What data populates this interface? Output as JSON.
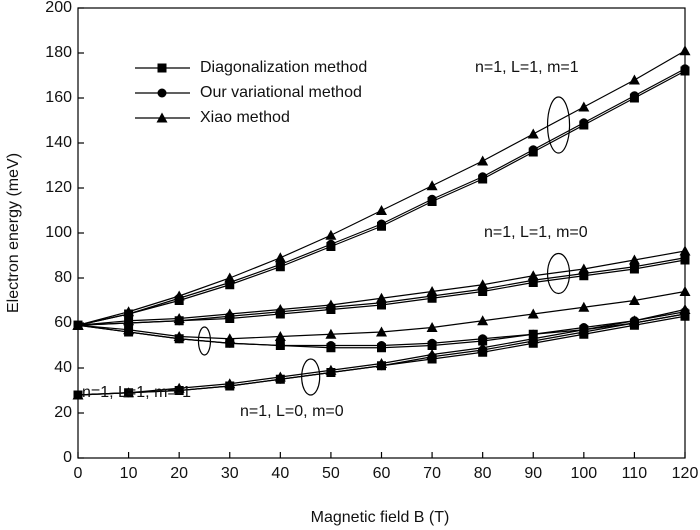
{
  "chart_data": {
    "type": "line",
    "xlabel": "Magnetic field B (T)",
    "ylabel": "Electron energy (meV)",
    "x": [
      0,
      10,
      20,
      30,
      40,
      50,
      60,
      70,
      80,
      90,
      100,
      110,
      120
    ],
    "xlim": [
      0,
      120
    ],
    "xticks": [
      0,
      10,
      20,
      30,
      40,
      50,
      60,
      70,
      80,
      90,
      100,
      110,
      120
    ],
    "ylim": [
      0,
      200
    ],
    "yticks": [
      0,
      20,
      40,
      60,
      80,
      100,
      120,
      140,
      160,
      180,
      200
    ],
    "legend": "upper left",
    "states": [
      "n=1, L=1, m=1",
      "n=1, L=1, m=0",
      "n=1, L=1, m=-1",
      "n=1, L=0, m=0"
    ],
    "series": [
      {
        "name": "Diagonalization method",
        "marker": "square",
        "color": "#000000",
        "values": [
          [
            59,
            64,
            70,
            77,
            85,
            94,
            103,
            114,
            124,
            136,
            148,
            160,
            172
          ],
          [
            59,
            60,
            61,
            62,
            64,
            66,
            68,
            71,
            74,
            78,
            81,
            84,
            88
          ],
          [
            59,
            56,
            53,
            51,
            50,
            49,
            49,
            50,
            52,
            55,
            57,
            60,
            64
          ],
          [
            28,
            29,
            30,
            32,
            35,
            38,
            41,
            44,
            47,
            51,
            55,
            59,
            63
          ]
        ]
      },
      {
        "name": "Our variational method",
        "marker": "circle",
        "color": "#000000",
        "values": [
          [
            59,
            64,
            71,
            78,
            86,
            95,
            104,
            115,
            125,
            137,
            149,
            161,
            173
          ],
          [
            59,
            60,
            61,
            63,
            65,
            67,
            69,
            72,
            75,
            79,
            82,
            85,
            89
          ],
          [
            59,
            56,
            53,
            51,
            50,
            50,
            50,
            51,
            53,
            55,
            58,
            61,
            65
          ],
          [
            28,
            29,
            30,
            32,
            35,
            38,
            41,
            45,
            48,
            52,
            56,
            60,
            64
          ]
        ]
      },
      {
        "name": "Xiao method",
        "marker": "triangle",
        "color": "#000000",
        "values": [
          [
            59,
            65,
            72,
            80,
            89,
            99,
            110,
            121,
            132,
            144,
            156,
            168,
            181
          ],
          [
            59,
            61,
            62,
            64,
            66,
            68,
            71,
            74,
            77,
            81,
            84,
            88,
            92
          ],
          [
            59,
            57,
            54,
            53,
            54,
            55,
            56,
            58,
            61,
            64,
            67,
            70,
            74
          ],
          [
            28,
            29,
            31,
            33,
            36,
            39,
            42,
            46,
            49,
            53,
            57,
            61,
            66
          ]
        ]
      }
    ]
  }
}
